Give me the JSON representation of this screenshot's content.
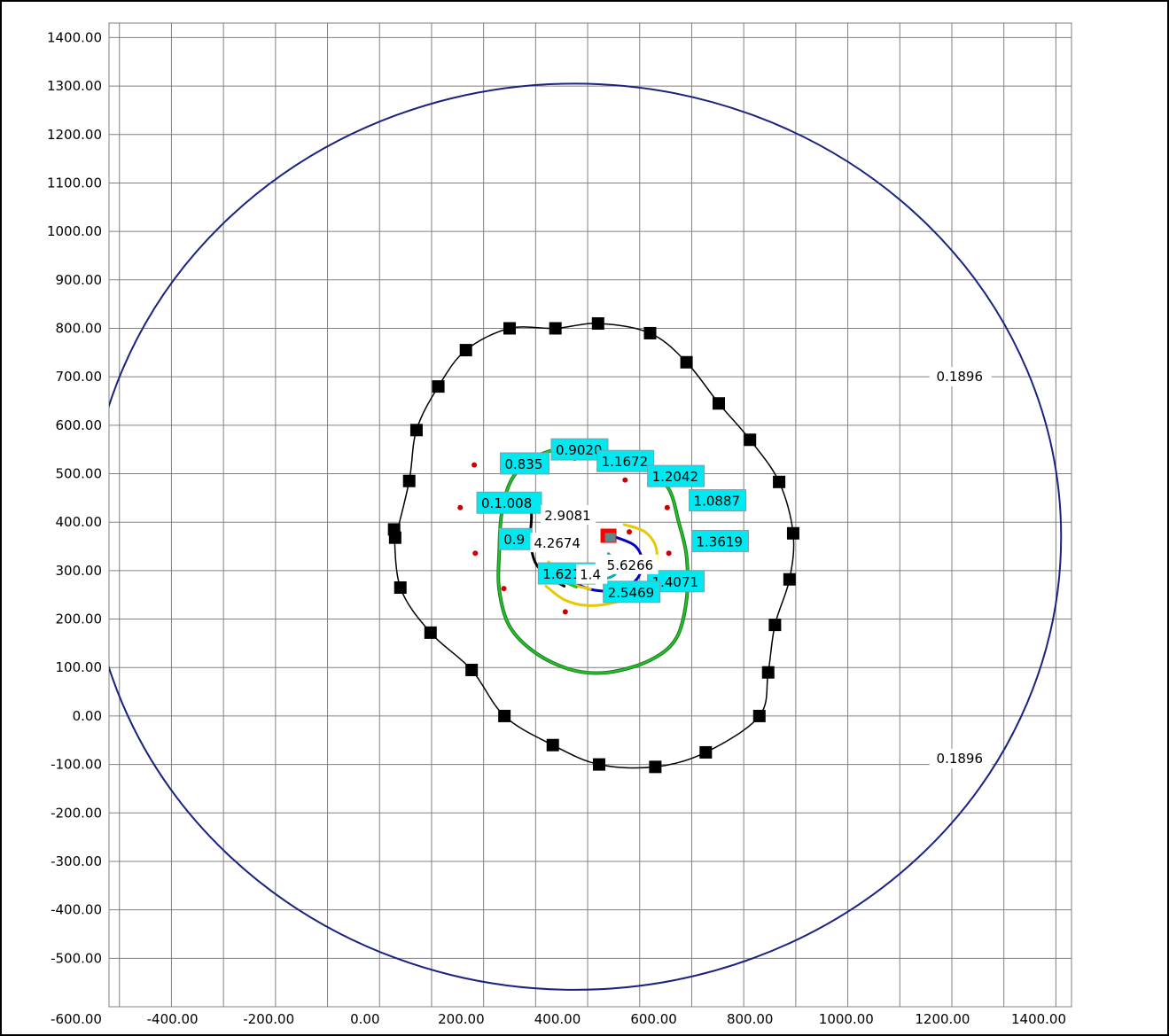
{
  "chart_data": {
    "type": "line",
    "title": "",
    "xlabel": "",
    "ylabel": "",
    "grid": true,
    "xlim": [
      -420,
      1430
    ],
    "ylim": [
      -600,
      1430
    ],
    "x_ticks": [
      "-600.00",
      "-400.00",
      "-200.00",
      "0.00",
      "200.00",
      "400.00",
      "600.00",
      "800.00",
      "1000.00",
      "1200.00",
      "1400.00"
    ],
    "x_tick_values": [
      -600,
      -400,
      -200,
      0,
      200,
      400,
      600,
      800,
      1000,
      1200,
      1400
    ],
    "y_ticks": [
      "1400.00",
      "1300.00",
      "1200.00",
      "1100.00",
      "1000.00",
      "900.00",
      "800.00",
      "700.00",
      "600.00",
      "500.00",
      "400.00",
      "300.00",
      "200.00",
      "100.00",
      "0.00",
      "-100.00",
      "-200.00",
      "-300.00",
      "-400.00",
      "-500.00"
    ],
    "y_tick_values": [
      1400,
      1300,
      1200,
      1100,
      1000,
      900,
      800,
      700,
      600,
      500,
      400,
      300,
      200,
      100,
      0,
      -100,
      -200,
      -300,
      -400,
      -500
    ],
    "outer_contour": {
      "level": "0.1896",
      "color": "#1a237e",
      "center": [
        475,
        370
      ],
      "radius": 935,
      "label_points": [
        [
          1215,
          700
        ],
        [
          1215,
          -88
        ]
      ]
    },
    "measured_boundary": {
      "color": "#000000",
      "marker_color": "#000000",
      "points": [
        [
          520,
          810
        ],
        [
          620,
          790
        ],
        [
          690,
          730
        ],
        [
          752,
          645
        ],
        [
          812,
          570
        ],
        [
          868,
          483
        ],
        [
          895,
          377
        ],
        [
          888,
          282
        ],
        [
          860,
          188
        ],
        [
          847,
          90
        ],
        [
          830,
          0
        ],
        [
          727,
          -75
        ],
        [
          630,
          -105
        ],
        [
          522,
          -100
        ],
        [
          433,
          -60
        ],
        [
          340,
          0
        ],
        [
          277,
          95
        ],
        [
          198,
          172
        ],
        [
          140,
          265
        ],
        [
          128,
          385
        ],
        [
          130,
          368
        ],
        [
          157,
          485
        ],
        [
          171,
          590
        ],
        [
          213,
          680
        ],
        [
          266,
          755
        ],
        [
          350,
          800
        ],
        [
          438,
          800
        ]
      ]
    },
    "green_contour": {
      "color": "#22c42a",
      "points": [
        [
          470,
          555
        ],
        [
          540,
          540
        ],
        [
          610,
          510
        ],
        [
          655,
          470
        ],
        [
          675,
          400
        ],
        [
          690,
          330
        ],
        [
          690,
          240
        ],
        [
          670,
          160
        ],
        [
          620,
          115
        ],
        [
          540,
          90
        ],
        [
          470,
          95
        ],
        [
          400,
          130
        ],
        [
          350,
          185
        ],
        [
          330,
          260
        ],
        [
          330,
          340
        ],
        [
          335,
          420
        ],
        [
          355,
          490
        ],
        [
          400,
          535
        ]
      ]
    },
    "red_points": [
      [
        282,
        518
      ],
      [
        255,
        430
      ],
      [
        320,
        450
      ],
      [
        475,
        532
      ],
      [
        572,
        487
      ],
      [
        653,
        430
      ],
      [
        656,
        336
      ],
      [
        580,
        380
      ],
      [
        284,
        336
      ],
      [
        339,
        263
      ],
      [
        457,
        215
      ],
      [
        547,
        255
      ]
    ],
    "inner_curves": [
      {
        "color": "#e8c800",
        "points": [
          [
            570,
            395
          ],
          [
            610,
            380
          ],
          [
            632,
            345
          ],
          [
            628,
            290
          ],
          [
            600,
            255
          ],
          [
            555,
            235
          ],
          [
            500,
            228
          ],
          [
            455,
            240
          ],
          [
            420,
            268
          ]
        ]
      },
      {
        "color": "#0000c8",
        "points": [
          [
            545,
            372
          ],
          [
            590,
            352
          ],
          [
            605,
            318
          ],
          [
            595,
            283
          ],
          [
            565,
            262
          ],
          [
            525,
            258
          ],
          [
            488,
            268
          ],
          [
            460,
            290
          ]
        ]
      },
      {
        "color": "#00b0b0",
        "points": [
          [
            540,
            335
          ],
          [
            558,
            312
          ],
          [
            552,
            292
          ],
          [
            530,
            283
          ],
          [
            506,
            290
          ],
          [
            495,
            308
          ]
        ]
      },
      {
        "color": "#e8c800",
        "points": [
          [
            425,
            318
          ],
          [
            445,
            292
          ],
          [
            470,
            272
          ],
          [
            505,
            262
          ]
        ]
      },
      {
        "color": "#22c42a",
        "points": [
          [
            430,
            300
          ],
          [
            450,
            280
          ],
          [
            478,
            266
          ]
        ]
      },
      {
        "color": "#000000",
        "points": [
          [
            390,
            450
          ],
          [
            392,
            410
          ],
          [
            390,
            365
          ],
          [
            398,
            320
          ],
          [
            420,
            290
          ],
          [
            455,
            268
          ]
        ]
      }
    ],
    "red_square": {
      "center": [
        540,
        372
      ],
      "color": "#ff0000"
    },
    "cyan_labels": [
      {
        "text": "0.9020",
        "x": 430,
        "y": 552
      },
      {
        "text": "1.1672",
        "x": 518,
        "y": 528
      },
      {
        "text": "0.835",
        "x": 332,
        "y": 523
      },
      {
        "text": "1.2042",
        "x": 615,
        "y": 497
      },
      {
        "text": "1.0887",
        "x": 695,
        "y": 447
      },
      {
        "text": "0.1.008",
        "x": 287,
        "y": 442
      },
      {
        "text": "1.3619",
        "x": 700,
        "y": 363
      },
      {
        "text": "0.9",
        "x": 330,
        "y": 367
      },
      {
        "text": "1.6214",
        "x": 405,
        "y": 296
      },
      {
        "text": "1.4071",
        "x": 615,
        "y": 280
      },
      {
        "text": "2.5469",
        "x": 530,
        "y": 258
      }
    ],
    "white_labels": [
      {
        "text": "2.9081",
        "x": 410,
        "y": 415
      },
      {
        "text": "4.2674",
        "x": 390,
        "y": 358
      },
      {
        "text": "5.6266",
        "x": 530,
        "y": 313
      },
      {
        "text": "1.4",
        "x": 478,
        "y": 293
      }
    ]
  }
}
